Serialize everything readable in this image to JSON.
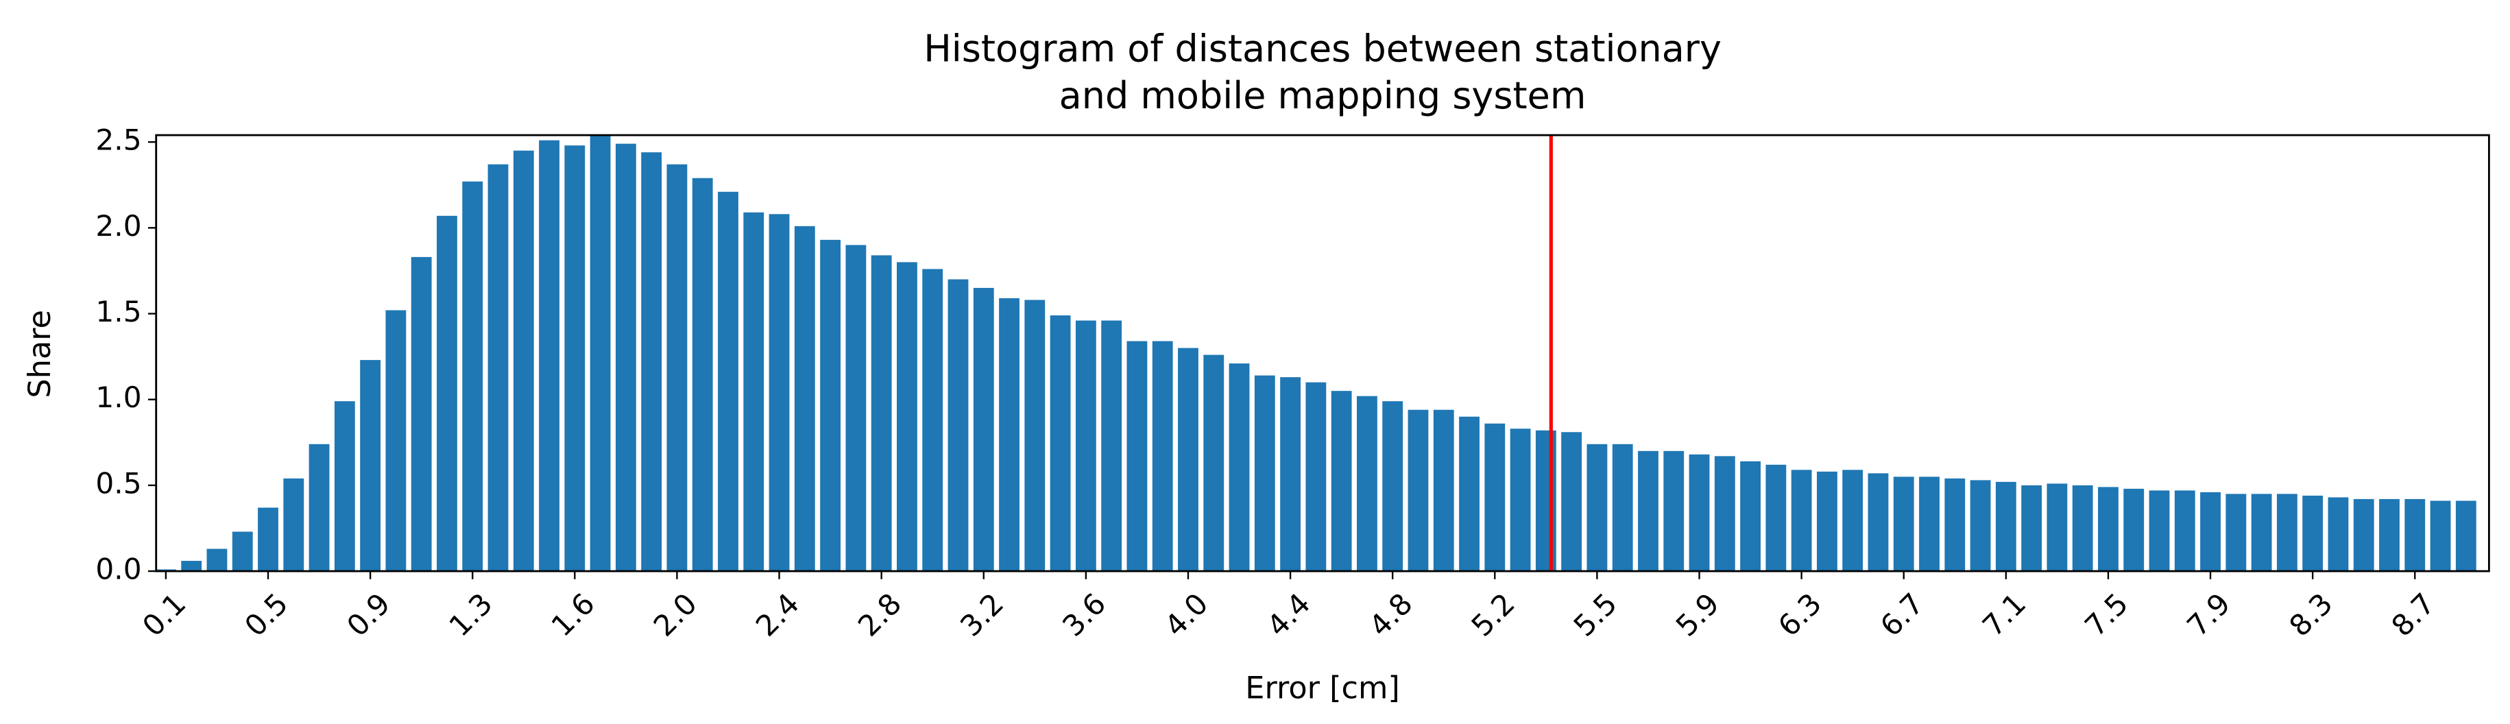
{
  "chart_data": {
    "type": "bar",
    "title": [
      "Histogram of distances between stationary",
      "and mobile mapping system"
    ],
    "x_label": "Error [cm]",
    "y_label": "Share",
    "categories": [
      "0.1",
      null,
      null,
      null,
      "0.5",
      null,
      null,
      null,
      "0.9",
      null,
      null,
      null,
      "1.3",
      null,
      null,
      null,
      "1.6",
      null,
      null,
      null,
      "2.0",
      null,
      null,
      null,
      "2.4",
      null,
      null,
      null,
      "2.8",
      null,
      null,
      null,
      "3.2",
      null,
      null,
      null,
      "3.6",
      null,
      null,
      null,
      "4.0",
      null,
      null,
      null,
      "4.4",
      null,
      null,
      null,
      "4.8",
      null,
      null,
      null,
      "5.2",
      null,
      null,
      null,
      "5.5",
      null,
      null,
      null,
      "5.9",
      null,
      null,
      null,
      "6.3",
      null,
      null,
      null,
      "6.7",
      null,
      null,
      null,
      "7.1",
      null,
      null,
      null,
      "7.5",
      null,
      null,
      null,
      "7.9",
      null,
      null,
      null,
      "8.3",
      null,
      null,
      null,
      "8.7",
      null,
      null
    ],
    "values": [
      0.01,
      0.06,
      0.13,
      0.23,
      0.37,
      0.54,
      0.74,
      0.99,
      1.23,
      1.52,
      1.83,
      2.07,
      2.27,
      2.37,
      2.45,
      2.51,
      2.48,
      2.54,
      2.49,
      2.44,
      2.37,
      2.29,
      2.21,
      2.09,
      2.08,
      2.01,
      1.93,
      1.9,
      1.84,
      1.8,
      1.76,
      1.7,
      1.65,
      1.59,
      1.58,
      1.49,
      1.46,
      1.46,
      1.34,
      1.34,
      1.3,
      1.26,
      1.21,
      1.14,
      1.13,
      1.1,
      1.05,
      1.02,
      0.99,
      0.94,
      0.94,
      0.9,
      0.86,
      0.83,
      0.82,
      0.81,
      0.74,
      0.74,
      0.7,
      0.7,
      0.68,
      0.67,
      0.64,
      0.62,
      0.59,
      0.58,
      0.59,
      0.57,
      0.55,
      0.55,
      0.54,
      0.53,
      0.52,
      0.5,
      0.51,
      0.5,
      0.49,
      0.48,
      0.47,
      0.47,
      0.46,
      0.45,
      0.45,
      0.45,
      0.44,
      0.43,
      0.42,
      0.42,
      0.42,
      0.41,
      0.41
    ],
    "color": "#1f77b4",
    "xlim": [
      -0.38,
      90.9
    ],
    "ylim": [
      0,
      2.54
    ],
    "yticks": [
      {
        "value": 0,
        "label": "0.0"
      },
      0.5,
      {
        "value": 1,
        "label": "1.0"
      },
      1.5,
      {
        "value": 2,
        "label": "2.0"
      },
      2.5
    ],
    "grid": false,
    "reference_line": {
      "x": 54.2,
      "color": "#ff0000"
    }
  }
}
